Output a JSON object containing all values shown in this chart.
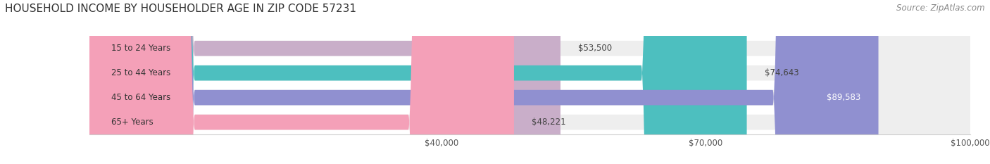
{
  "title": "HOUSEHOLD INCOME BY HOUSEHOLDER AGE IN ZIP CODE 57231",
  "source": "Source: ZipAtlas.com",
  "categories": [
    "15 to 24 Years",
    "25 to 44 Years",
    "45 to 64 Years",
    "65+ Years"
  ],
  "values": [
    53500,
    74643,
    89583,
    48221
  ],
  "bar_colors": [
    "#c9aec9",
    "#4dbfbf",
    "#9090d0",
    "#f4a0b8"
  ],
  "bar_bg_color": "#eeeeee",
  "xmin": 0,
  "xmax": 100000,
  "xticks": [
    40000,
    70000,
    100000
  ],
  "xtick_labels": [
    "$40,000",
    "$70,000",
    "$100,000"
  ],
  "figsize": [
    14.06,
    2.33
  ],
  "dpi": 100,
  "title_fontsize": 11,
  "source_fontsize": 8.5,
  "label_fontsize": 8.5,
  "value_fontsize": 8.5
}
